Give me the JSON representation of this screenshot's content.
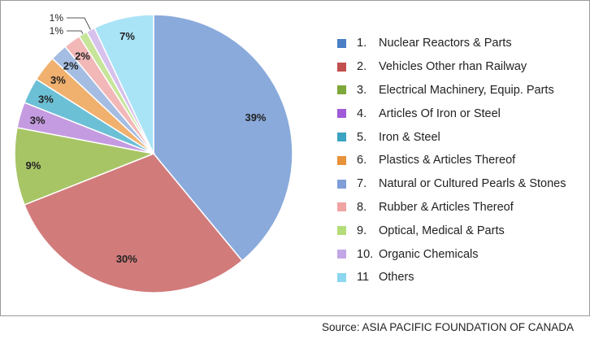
{
  "chart_data": {
    "type": "pie",
    "categories": [
      "Nuclear Reactors & Parts",
      "Vehicles Other rhan Railway",
      "Electrical Machinery, Equip. Parts",
      "Articles Of Iron or Steel",
      "Iron & Steel",
      "Plastics & Articles Thereof",
      "Natural or Cultured Pearls & Stones",
      "Rubber & Articles Thereof",
      "Optical, Medical & Parts",
      "Organic Chemicals",
      "Others"
    ],
    "legend_numbers": [
      "1.",
      "2.",
      "3.",
      "4.",
      "5.",
      "6.",
      "7.",
      "8.",
      "9.",
      "10.",
      "11"
    ],
    "values": [
      39,
      30,
      9,
      3,
      3,
      3,
      2,
      2,
      1,
      1,
      7
    ],
    "data_labels": [
      "39%",
      "30%",
      "9%",
      "3%",
      "3%",
      "3%",
      "2%",
      "2%",
      "1%",
      "1%",
      "7%"
    ],
    "colors": [
      "#8aaadc",
      "#d27b7b",
      "#a8c566",
      "#c49be0",
      "#6cc0d6",
      "#f0b06e",
      "#a5bde2",
      "#f2b7b7",
      "#c7e59a",
      "#d6c2ec",
      "#a9e3f6"
    ],
    "legend_colors": [
      "#4a7fc4",
      "#c24f4f",
      "#7fa83a",
      "#a05ad8",
      "#3ca3c2",
      "#e8923a",
      "#7f9ed8",
      "#f0a3a3",
      "#b4dc78",
      "#c3a6e6",
      "#8cd6f0"
    ],
    "legend_position": "right"
  },
  "source": "Source: ASIA PACIFIC FOUNDATION OF CANADA"
}
